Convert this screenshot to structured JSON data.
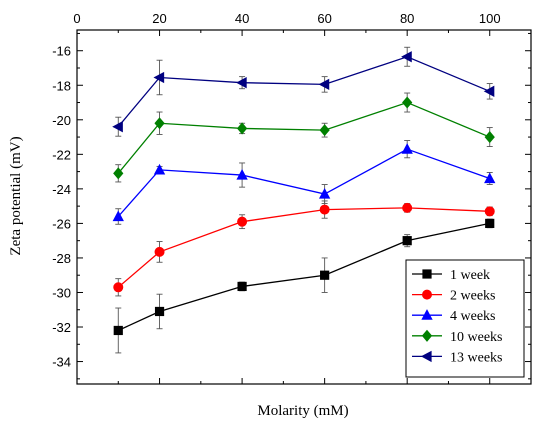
{
  "chart_data": {
    "type": "line",
    "title": "",
    "xlabel": "Molarity (mM)",
    "ylabel": "Zeta potential (mV)",
    "xlim": [
      0,
      110
    ],
    "ylim": [
      -35.3,
      -14.8
    ],
    "xticks": [
      0,
      20,
      40,
      60,
      80,
      100
    ],
    "yticks": [
      -34,
      -32,
      -30,
      -28,
      -26,
      -24,
      -22,
      -20,
      -18,
      -16
    ],
    "x_tick_position": "top",
    "grid": false,
    "legend_position": "bottom-right",
    "x": [
      10,
      20,
      40,
      60,
      80,
      100
    ],
    "series": [
      {
        "name": "1 week",
        "color": "#000000",
        "marker": "square",
        "values": [
          -32.2,
          -31.1,
          -29.65,
          -29.0,
          -27.0,
          -26.0
        ],
        "errors": [
          1.3,
          1.0,
          0.25,
          1.0,
          0.35,
          0.25
        ]
      },
      {
        "name": "2 weeks",
        "color": "#ff0000",
        "marker": "circle",
        "values": [
          -29.7,
          -27.65,
          -25.9,
          -25.2,
          -25.1,
          -25.3
        ],
        "errors": [
          0.5,
          0.6,
          0.4,
          0.5,
          0.25,
          0.25
        ]
      },
      {
        "name": "4 weeks",
        "color": "#0000ff",
        "marker": "triangle-up",
        "values": [
          -25.6,
          -22.9,
          -23.2,
          -24.3,
          -21.7,
          -23.4
        ],
        "errors": [
          0.45,
          0.2,
          0.7,
          0.55,
          0.5,
          0.35
        ]
      },
      {
        "name": "10 weeks",
        "color": "#008000",
        "marker": "diamond",
        "values": [
          -23.1,
          -20.2,
          -20.5,
          -20.6,
          -19.0,
          -21.0
        ],
        "errors": [
          0.5,
          0.65,
          0.3,
          0.4,
          0.55,
          0.55
        ]
      },
      {
        "name": "13 weeks",
        "color": "#000080",
        "marker": "triangle-left",
        "values": [
          -20.4,
          -17.55,
          -17.85,
          -17.95,
          -16.35,
          -18.35
        ],
        "errors": [
          0.55,
          1.0,
          0.35,
          0.45,
          0.55,
          0.45
        ]
      }
    ]
  }
}
